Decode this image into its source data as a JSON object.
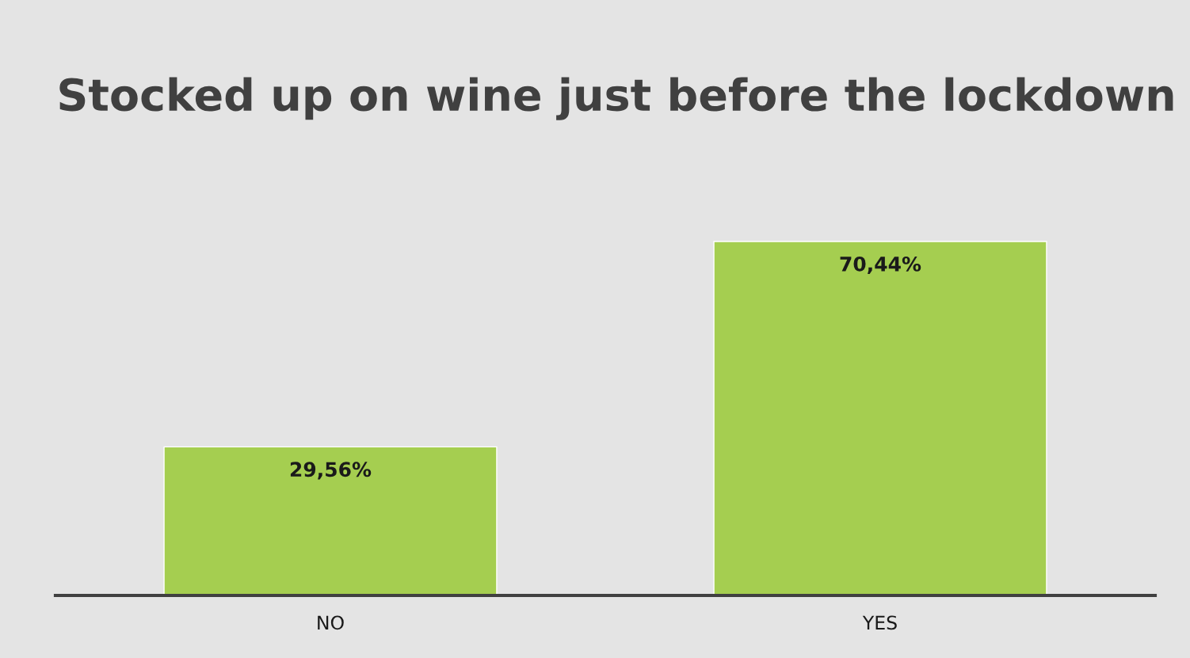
{
  "chart_data": {
    "type": "bar",
    "title": "Stocked up on wine just before the lockdown",
    "categories": [
      "NO",
      "YES"
    ],
    "values": [
      29.56,
      70.44
    ],
    "value_labels": [
      "29,56%",
      "70,44%"
    ],
    "color": "#a5ce50",
    "grid": false,
    "legend": false
  }
}
